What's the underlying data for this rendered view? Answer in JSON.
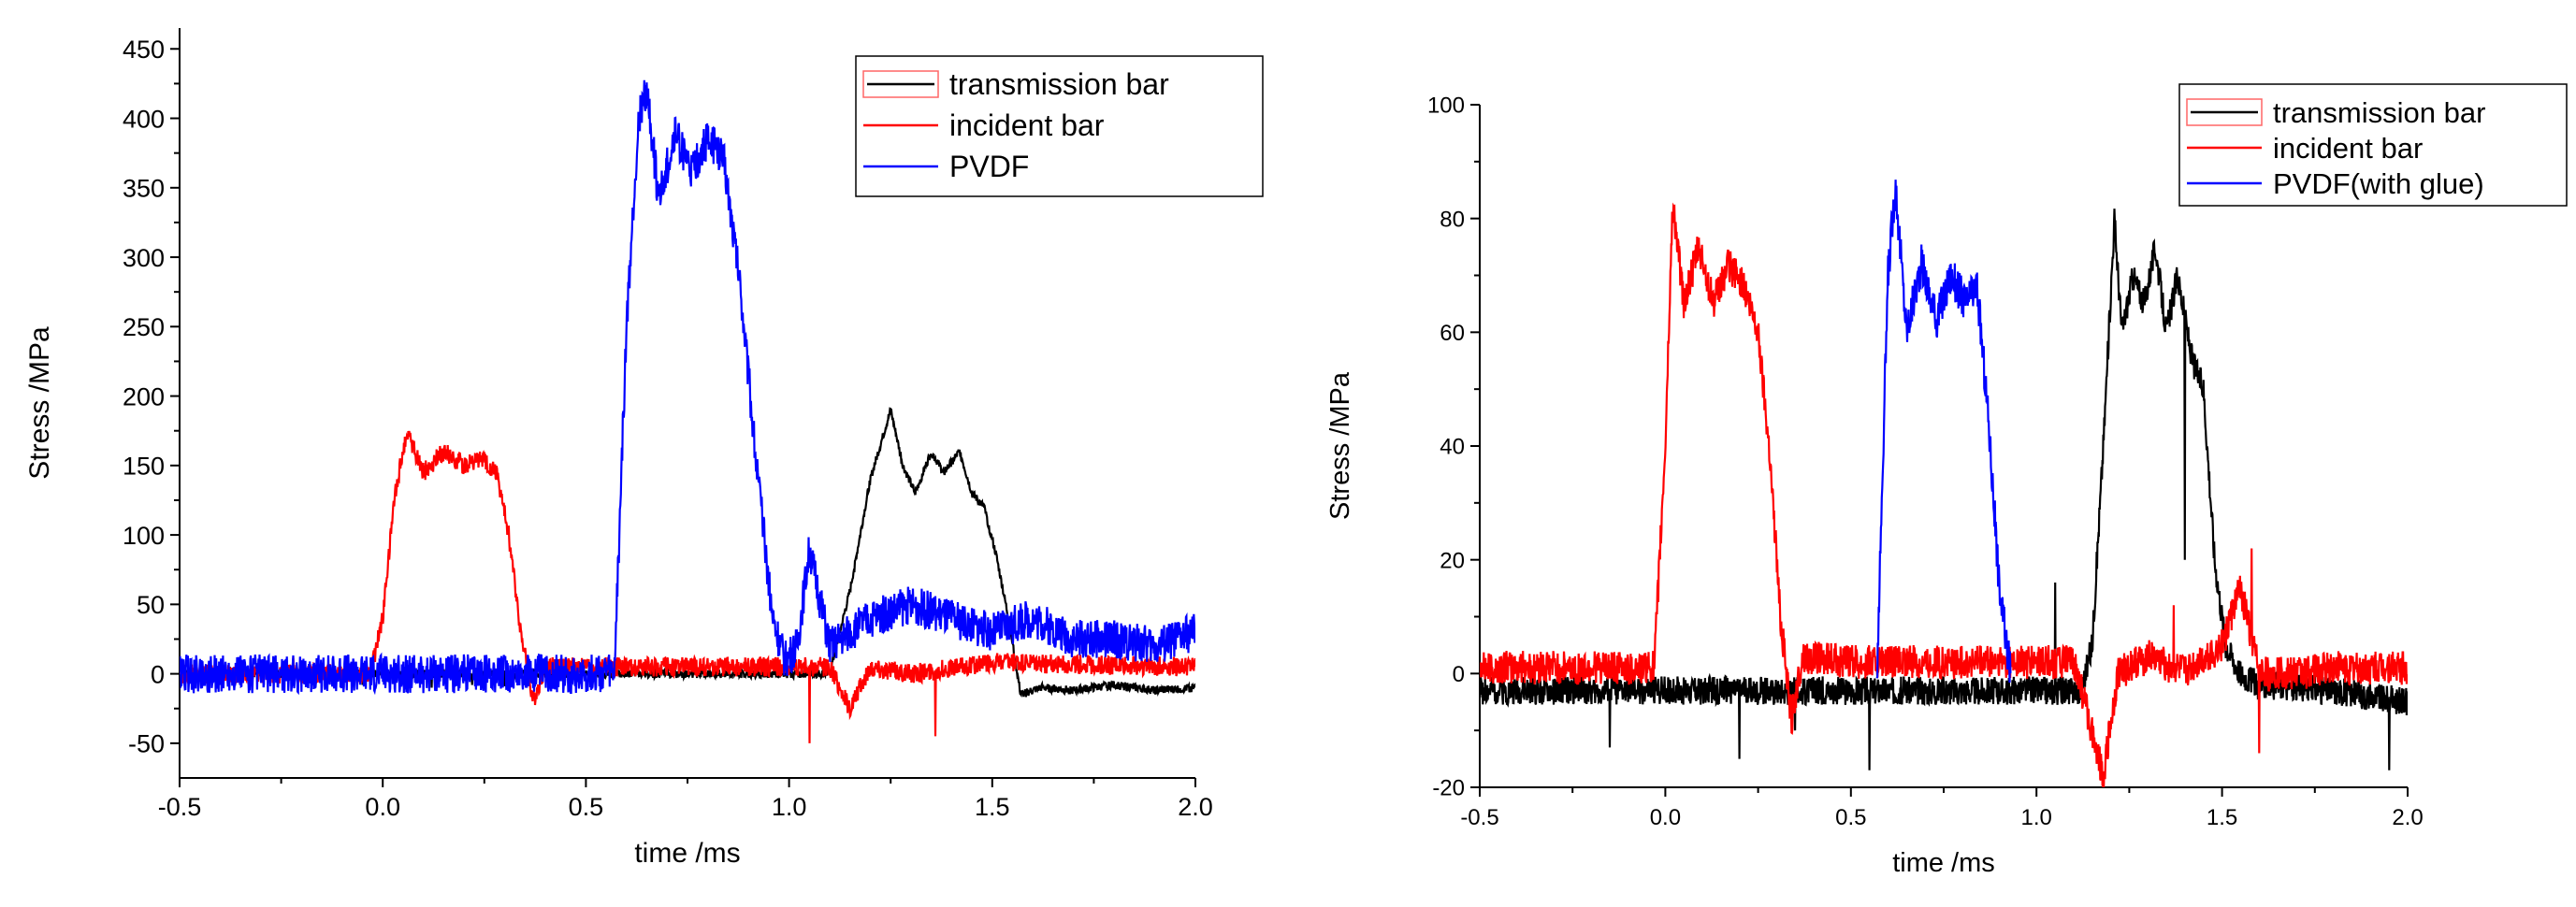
{
  "chart_data": [
    {
      "type": "line",
      "title": "",
      "xlabel": "time /ms",
      "ylabel": "Stress /MPa",
      "xlim": [
        -0.5,
        2.0
      ],
      "ylim": [
        -75,
        465
      ],
      "xticks": [
        -0.5,
        0.0,
        0.5,
        1.0,
        1.5,
        2.0
      ],
      "xtick_labels": [
        "-0.5",
        "0.0",
        "0.5",
        "1.0",
        "1.5",
        "2.0"
      ],
      "yticks": [
        -50,
        0,
        50,
        100,
        150,
        200,
        250,
        300,
        350,
        400,
        450
      ],
      "ytick_labels": [
        "-50",
        "0",
        "50",
        "100",
        "150",
        "200",
        "250",
        "300",
        "350",
        "400",
        "450"
      ],
      "grid": false,
      "legend_position": "top-right",
      "series": [
        {
          "name": "transmission bar",
          "color": "#000000",
          "legend_swatch": "box",
          "x": [
            -0.5,
            1.1,
            1.15,
            1.2,
            1.25,
            1.28,
            1.31,
            1.35,
            1.38,
            1.42,
            1.45,
            1.48,
            1.51,
            1.54,
            1.57,
            1.62,
            1.7,
            1.8,
            1.9,
            2.0
          ],
          "y": [
            0,
            0,
            60,
            140,
            190,
            150,
            130,
            160,
            145,
            160,
            130,
            120,
            85,
            40,
            -15,
            -10,
            -12,
            -8,
            -12,
            -10
          ],
          "noise": 3,
          "spikes": [
            [
              -0.05,
              -8
            ],
            [
              0.12,
              -10
            ],
            [
              0.22,
              -8
            ],
            [
              0.3,
              -9
            ]
          ]
        },
        {
          "name": "incident bar",
          "color": "#ff0000",
          "legend_swatch": "line",
          "x": [
            -0.5,
            -0.03,
            0.0,
            0.03,
            0.06,
            0.1,
            0.15,
            0.2,
            0.24,
            0.28,
            0.31,
            0.34,
            0.37,
            0.4,
            1.1,
            1.15,
            1.2,
            1.3,
            1.5,
            2.0
          ],
          "y": [
            0,
            0,
            40,
            130,
            175,
            145,
            160,
            150,
            155,
            145,
            100,
            30,
            -20,
            5,
            5,
            -25,
            5,
            0,
            8,
            5
          ],
          "noise": 7,
          "spikes": [
            [
              -0.22,
              12
            ],
            [
              1.05,
              -50
            ],
            [
              1.36,
              -45
            ]
          ]
        },
        {
          "name": "PVDF",
          "color": "#0000ff",
          "legend_swatch": "line",
          "x": [
            -0.5,
            0.57,
            0.6,
            0.63,
            0.65,
            0.68,
            0.72,
            0.76,
            0.8,
            0.84,
            0.88,
            0.92,
            0.96,
            0.99,
            1.02,
            1.05,
            1.1,
            1.2,
            1.3,
            1.4,
            1.5,
            1.6,
            1.7,
            1.8,
            1.9,
            2.0
          ],
          "y": [
            0,
            0,
            250,
            400,
            420,
            340,
            390,
            360,
            385,
            370,
            280,
            150,
            40,
            10,
            20,
            90,
            20,
            40,
            50,
            40,
            30,
            40,
            25,
            25,
            20,
            30
          ],
          "noise": 14,
          "spikes": []
        }
      ]
    },
    {
      "type": "line",
      "title": "",
      "xlabel": "time /ms",
      "ylabel": "Stress /MPa",
      "xlim": [
        -0.5,
        2.0
      ],
      "ylim": [
        -20,
        100
      ],
      "xticks": [
        -0.5,
        0.0,
        0.5,
        1.0,
        1.5,
        2.0
      ],
      "xtick_labels": [
        "-0.5",
        "0.0",
        "0.5",
        "1.0",
        "1.5",
        "2.0"
      ],
      "yticks": [
        -20,
        0,
        20,
        40,
        60,
        80,
        100
      ],
      "ytick_labels": [
        "-20",
        "0",
        "20",
        "40",
        "60",
        "80",
        "100"
      ],
      "grid": false,
      "legend_position": "top-right",
      "series": [
        {
          "name": "transmission bar",
          "color": "#000000",
          "legend_swatch": "box",
          "x": [
            -0.5,
            1.12,
            1.15,
            1.18,
            1.21,
            1.23,
            1.26,
            1.29,
            1.32,
            1.35,
            1.38,
            1.42,
            1.45,
            1.48,
            1.51,
            1.55,
            1.6,
            1.8,
            2.0
          ],
          "y": [
            -3,
            -3,
            5,
            40,
            80,
            60,
            70,
            65,
            75,
            60,
            70,
            55,
            50,
            20,
            5,
            0,
            -2,
            -3,
            -5
          ],
          "noise": 2.5,
          "spikes": [
            [
              -0.15,
              -13
            ],
            [
              0.2,
              -15
            ],
            [
              0.35,
              -10
            ],
            [
              0.55,
              -17
            ],
            [
              1.05,
              16
            ],
            [
              1.4,
              20
            ],
            [
              1.95,
              -17
            ]
          ]
        },
        {
          "name": "incident bar",
          "color": "#ff0000",
          "legend_swatch": "line",
          "x": [
            -0.5,
            -0.03,
            0.0,
            0.02,
            0.05,
            0.09,
            0.13,
            0.17,
            0.21,
            0.25,
            0.28,
            0.31,
            0.34,
            0.37,
            0.5,
            1.1,
            1.15,
            1.18,
            1.22,
            1.3,
            1.4,
            1.5,
            1.55,
            1.6,
            1.7,
            1.8,
            2.0
          ],
          "y": [
            1,
            1,
            40,
            83,
            65,
            75,
            65,
            72,
            68,
            60,
            40,
            10,
            -8,
            3,
            2,
            2,
            -10,
            -18,
            0,
            3,
            0,
            5,
            15,
            0,
            0,
            1,
            1
          ],
          "noise": 3,
          "spikes": [
            [
              1.37,
              12
            ],
            [
              1.58,
              22
            ],
            [
              1.6,
              -14
            ]
          ]
        },
        {
          "name": "PVDF(with glue)",
          "color": "#0000ff",
          "legend_swatch": "line",
          "x": [
            0.57,
            0.6,
            0.62,
            0.65,
            0.69,
            0.73,
            0.77,
            0.81,
            0.84,
            0.87,
            0.9,
            0.93
          ],
          "y": [
            0,
            70,
            86,
            60,
            72,
            62,
            70,
            65,
            68,
            45,
            15,
            0
          ],
          "noise": 3.5,
          "spikes": []
        }
      ]
    }
  ]
}
